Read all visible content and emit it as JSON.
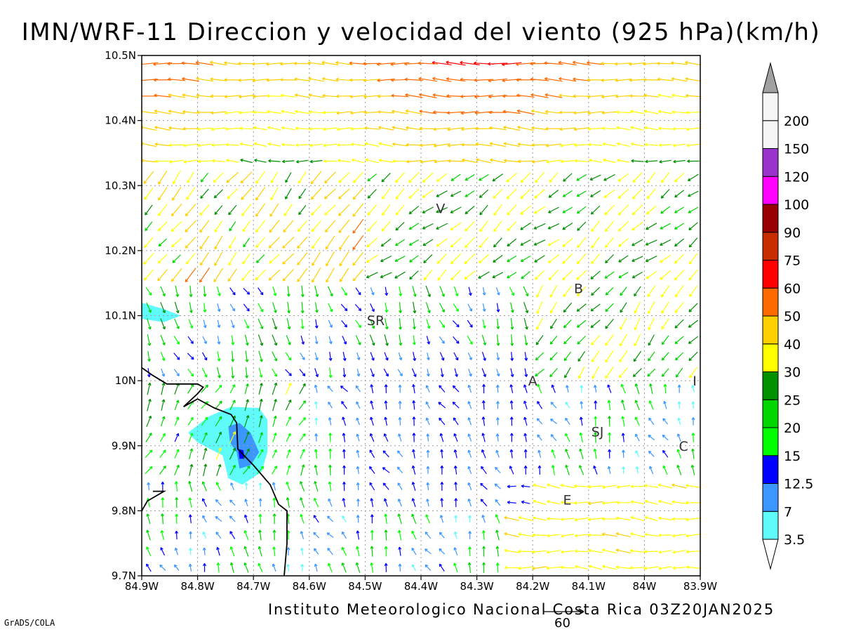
{
  "title": "IMN/WRF-11 Direccion y velocidad del viento (925 hPa)(km/h)",
  "credit": "Instituto Meteorologico Nacional Costa Rica 03Z20JAN2025",
  "software": "GrADS/COLA",
  "reference_vector": {
    "label": "60",
    "speed_kmh": 60
  },
  "map": {
    "lon_range": [
      -84.9,
      -83.9
    ],
    "lat_range": [
      9.7,
      10.5
    ],
    "x_ticks": [
      "84.9W",
      "84.8W",
      "84.7W",
      "84.6W",
      "84.5W",
      "84.4W",
      "84.3W",
      "84.2W",
      "84.1W",
      "84W",
      "83.9W"
    ],
    "y_ticks": [
      "9.7N",
      "9.8N",
      "9.9N",
      "10N",
      "10.1N",
      "10.2N",
      "10.3N",
      "10.4N",
      "10.5N"
    ],
    "grid": true,
    "vector_spacing_deg": 0.025,
    "places": [
      {
        "label": "V",
        "lon": -84.365,
        "lat": 10.265
      },
      {
        "label": "B",
        "lon": -84.118,
        "lat": 10.142
      },
      {
        "label": "SR",
        "lon": -84.481,
        "lat": 10.093
      },
      {
        "label": "A",
        "lon": -84.2,
        "lat": 10.0
      },
      {
        "label": "I",
        "lon": -83.91,
        "lat": 10.0
      },
      {
        "label": "SJ",
        "lon": -84.084,
        "lat": 9.922
      },
      {
        "label": "C",
        "lon": -83.93,
        "lat": 9.9
      },
      {
        "label": "E",
        "lon": -84.138,
        "lat": 9.817
      }
    ],
    "speed_patches": [
      {
        "level": 3.5,
        "points": [
          [
            -84.9,
            10.12
          ],
          [
            -84.86,
            10.11
          ],
          [
            -84.83,
            10.1
          ],
          [
            -84.86,
            10.09
          ],
          [
            -84.9,
            10.095
          ]
        ]
      },
      {
        "level": 3.5,
        "points": [
          [
            -84.817,
            9.92
          ],
          [
            -84.78,
            9.945
          ],
          [
            -84.74,
            9.96
          ],
          [
            -84.69,
            9.958
          ],
          [
            -84.675,
            9.94
          ],
          [
            -84.675,
            9.89
          ],
          [
            -84.685,
            9.86
          ],
          [
            -84.72,
            9.84
          ],
          [
            -84.745,
            9.85
          ],
          [
            -84.755,
            9.885
          ],
          [
            -84.8,
            9.905
          ]
        ]
      },
      {
        "level": 7,
        "points": [
          [
            -84.745,
            9.93
          ],
          [
            -84.725,
            9.935
          ],
          [
            -84.705,
            9.92
          ],
          [
            -84.69,
            9.89
          ],
          [
            -84.705,
            9.87
          ],
          [
            -84.725,
            9.865
          ],
          [
            -84.73,
            9.89
          ],
          [
            -84.742,
            9.905
          ]
        ]
      },
      {
        "level": 12.5,
        "points": [
          [
            -84.727,
            9.895
          ],
          [
            -84.718,
            9.893
          ],
          [
            -84.716,
            9.88
          ],
          [
            -84.725,
            9.88
          ]
        ]
      }
    ],
    "coastline": [
      [
        [
          -84.9,
          10.02
        ],
        [
          -84.88,
          10.008
        ],
        [
          -84.855,
          9.995
        ],
        [
          -84.8,
          9.995
        ],
        [
          -84.79,
          9.99
        ],
        [
          -84.8,
          9.98
        ],
        [
          -84.825,
          9.96
        ],
        [
          -84.8,
          9.972
        ],
        [
          -84.77,
          9.958
        ],
        [
          -84.74,
          9.948
        ],
        [
          -84.73,
          9.935
        ],
        [
          -84.728,
          9.895
        ],
        [
          -84.7,
          9.87
        ],
        [
          -84.67,
          9.84
        ],
        [
          -84.655,
          9.81
        ],
        [
          -84.64,
          9.8
        ],
        [
          -84.64,
          9.75
        ],
        [
          -84.645,
          9.7
        ]
      ],
      [
        [
          -84.9,
          9.8
        ],
        [
          -84.89,
          9.815
        ],
        [
          -84.86,
          9.83
        ],
        [
          -84.88,
          9.83
        ]
      ]
    ],
    "colorbar": {
      "levels": [
        "3.5",
        "7",
        "12.5",
        "15",
        "20",
        "25",
        "30",
        "40",
        "50",
        "60",
        "75",
        "90",
        "100",
        "120",
        "150",
        "200"
      ],
      "colors": [
        "#5ffbfb",
        "#3b97ff",
        "#0000fd",
        "#00ff00",
        "#00d500",
        "#009100",
        "#ffff00",
        "#ffd000",
        "#ff6a00",
        "#ff0000",
        "#c82d00",
        "#960000",
        "#ff00ff",
        "#9933cc",
        "#f5f5f5",
        "#a0a0a0"
      ]
    }
  }
}
